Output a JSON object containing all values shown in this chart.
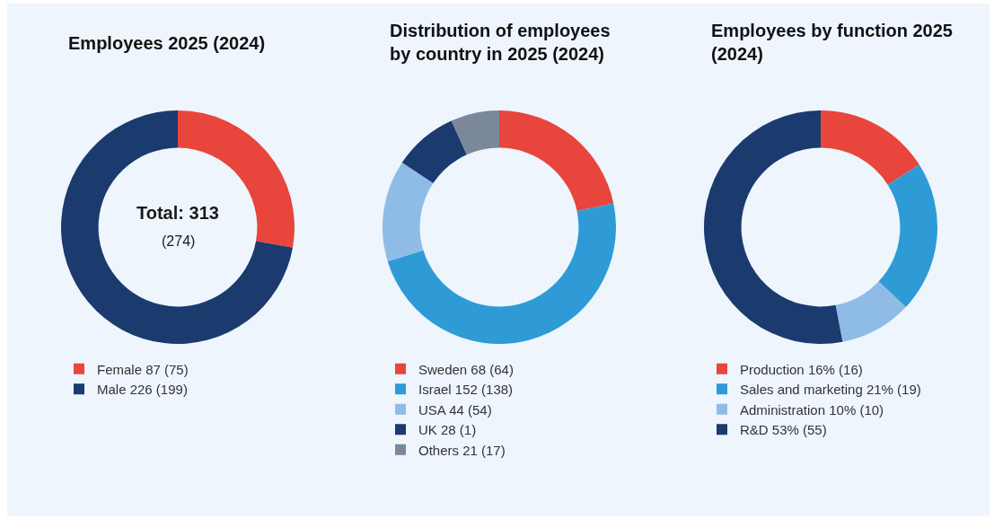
{
  "chart_data": [
    {
      "type": "donut",
      "title": "Employees 2025 (2024)",
      "categories": [
        "Female 87 (75)",
        "Male 226 (199)"
      ],
      "values": [
        87,
        226
      ],
      "colors": [
        "#e8453c",
        "#1b3a6e"
      ],
      "annotations": [
        "Total: 313",
        "(274)"
      ],
      "legend": "bottom"
    },
    {
      "type": "donut",
      "title": "Distribution of employees by country in 2025 (2024)",
      "categories": [
        "Sweden 68 (64)",
        "Israel 152 (138)",
        "USA 44 (54)",
        "UK 28 (1)",
        "Others 21 (17)"
      ],
      "values": [
        68,
        152,
        44,
        28,
        21
      ],
      "colors": [
        "#e8453c",
        "#2e9bd6",
        "#8fbce6",
        "#1b3a6e",
        "#7a8899"
      ],
      "legend": "bottom"
    },
    {
      "type": "donut",
      "title": "Employees by function 2025 (2024)",
      "categories": [
        "Production 16% (16)",
        "Sales and marketing 21% (19)",
        "Administration 10% (10)",
        "R&D 53% (55)"
      ],
      "values": [
        16,
        21,
        10,
        53
      ],
      "colors": [
        "#e8453c",
        "#2e9bd6",
        "#8fbce6",
        "#1b3a6e"
      ],
      "legend": "bottom"
    }
  ]
}
